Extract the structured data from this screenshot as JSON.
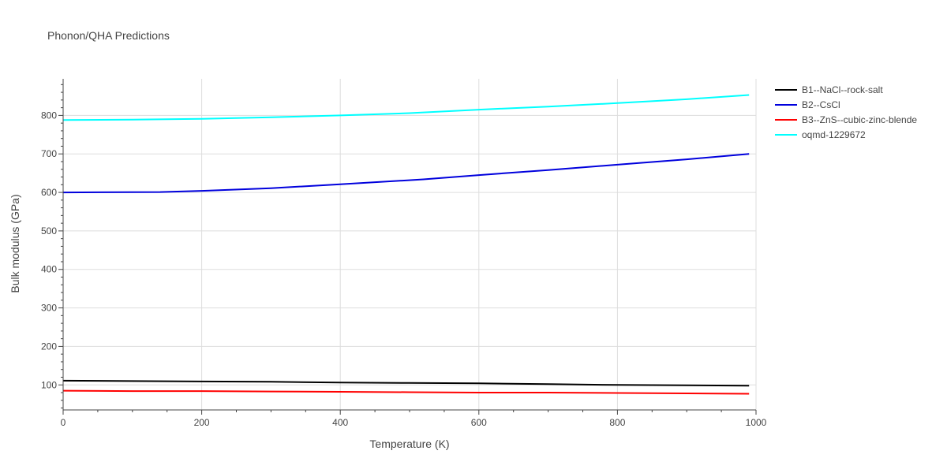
{
  "chart_data": {
    "type": "line",
    "title": "Phonon/QHA Predictions",
    "xlabel": "Temperature (K)",
    "ylabel": "Bulk modulus (GPa)",
    "xlim": [
      0,
      1000
    ],
    "ylim": [
      35,
      895
    ],
    "grid": true,
    "legend_position": "right",
    "x_ticks": [
      0,
      200,
      400,
      600,
      800,
      1000
    ],
    "y_ticks": [
      100,
      200,
      300,
      400,
      500,
      600,
      700,
      800
    ],
    "series": [
      {
        "name": "B1--NaCl--rock-salt",
        "color": "#000000",
        "x": [
          0,
          100,
          200,
          300,
          400,
          500,
          600,
          700,
          800,
          900,
          990
        ],
        "y": [
          111,
          110,
          109,
          108,
          106,
          105,
          104,
          102,
          100,
          99,
          98
        ]
      },
      {
        "name": "B2--CsCl",
        "color": "#0000dd",
        "x": [
          0,
          140,
          200,
          300,
          400,
          520,
          600,
          700,
          800,
          900,
          990
        ],
        "y": [
          600,
          601,
          604,
          611,
          621,
          634,
          645,
          658,
          672,
          686,
          700
        ]
      },
      {
        "name": "B3--ZnS--cubic-zinc-blende",
        "color": "#ff0000",
        "x": [
          0,
          100,
          200,
          300,
          400,
          500,
          600,
          700,
          800,
          900,
          990
        ],
        "y": [
          85,
          84,
          84,
          83,
          82,
          81,
          80,
          80,
          79,
          78,
          77
        ]
      },
      {
        "name": "oqmd-1229672",
        "color": "#00ffff",
        "x": [
          0,
          100,
          200,
          300,
          400,
          500,
          600,
          700,
          800,
          900,
          990
        ],
        "y": [
          788,
          789,
          791,
          795,
          800,
          806,
          815,
          823,
          832,
          842,
          853
        ]
      }
    ]
  },
  "colors": {
    "grid": "#dddddd",
    "axis": "#444444",
    "text": "#444444"
  }
}
